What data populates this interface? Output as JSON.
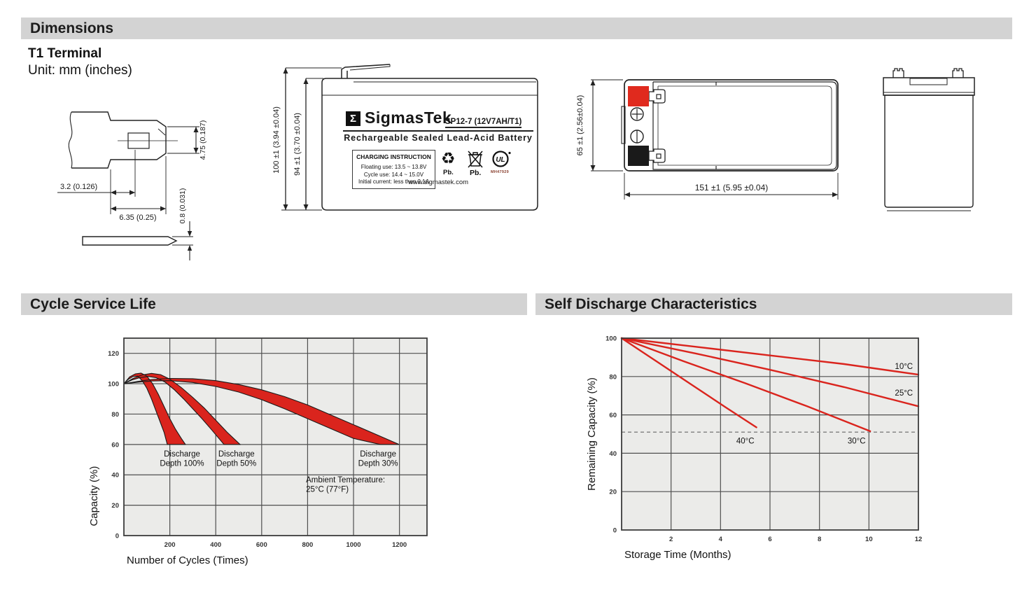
{
  "sections": {
    "dimensions": {
      "title": "Dimensions"
    }
  },
  "terminal": {
    "heading": "T1 Terminal",
    "unit": "Unit: mm (inches)",
    "dims": {
      "offset_3_2": "3.2 (0.126)",
      "width_6_35": "6.35 (0.25)",
      "height_4_75": "4.75 (0.187)",
      "thickness_0_8": "0.8 (0.031)"
    }
  },
  "front_view": {
    "dim_total_height": "100 ±1 (3.94 ±0.04)",
    "dim_case_height": "94 ±1 (3.70 ±0.04)",
    "label": {
      "logo_glyph": "Σ",
      "brand": "SigmasTek",
      "model": "SP12-7 (12V7AH/T1)",
      "subtitle": "Rechargeable Sealed Lead-Acid Battery",
      "charging_box": {
        "title": "CHARGING INSTRUCTION",
        "lines": [
          "Floating use: 13.5 ~ 13.8V",
          "Cycle use: 14.4 ~ 15.0V",
          "Initial current: less than 2.1A"
        ]
      },
      "pb_recycle_label": "Pb.",
      "pb_trash_label": "Pb.",
      "recycle_glyph": "♻",
      "ul_letters": "UL",
      "ul_number": "MH47929",
      "website": "www.sigmastek.com"
    }
  },
  "top_view": {
    "dim_width": "65 ±1 (2.56±0.04)",
    "dim_length": "151 ±1 (5.95 ±0.04)",
    "positive_color": "#e02a1e",
    "negative_color": "#1a1a1a"
  },
  "chart_data": [
    {
      "type": "area",
      "title": "Cycle Service Life",
      "xlabel": "Number of Cycles (Times)",
      "ylabel": "Capacity (%)",
      "xlim": [
        0,
        1320
      ],
      "ylim": [
        0,
        130
      ],
      "xticks": [
        200,
        400,
        600,
        800,
        1000,
        1200
      ],
      "yticks": [
        0,
        20,
        40,
        60,
        80,
        100,
        120
      ],
      "xgrid": [
        200,
        400,
        600,
        800,
        1000,
        1200
      ],
      "ygrid": [
        20,
        40,
        60,
        80,
        100,
        120
      ],
      "grid": true,
      "colors": {
        "bg": "#ebebe9",
        "grid": "#4f4f4f",
        "border": "#3c3c3c",
        "fill": "#da241d"
      },
      "bands": [
        {
          "name": "Discharge Depth 100%",
          "upper": [
            [
              0,
              100
            ],
            [
              25,
              104.5
            ],
            [
              50,
              106.5
            ],
            [
              75,
              107
            ],
            [
              100,
              105
            ],
            [
              125,
              100
            ],
            [
              150,
              93
            ],
            [
              175,
              85
            ],
            [
              200,
              77
            ],
            [
              225,
              70
            ],
            [
              250,
              64
            ],
            [
              268,
              60
            ]
          ],
          "lower": [
            [
              0,
              100
            ],
            [
              20,
              103
            ],
            [
              40,
              104.8
            ],
            [
              60,
              105
            ],
            [
              80,
              102
            ],
            [
              100,
              97
            ],
            [
              120,
              90
            ],
            [
              140,
              82
            ],
            [
              160,
              74
            ],
            [
              175,
              68
            ],
            [
              189,
              60
            ]
          ]
        },
        {
          "name": "Discharge Depth 50%",
          "upper": [
            [
              0,
              100
            ],
            [
              40,
              103.5
            ],
            [
              80,
              105.8
            ],
            [
              120,
              106.8
            ],
            [
              160,
              106
            ],
            [
              200,
              103
            ],
            [
              250,
              97.5
            ],
            [
              300,
              91
            ],
            [
              350,
              84
            ],
            [
              400,
              76
            ],
            [
              450,
              68
            ],
            [
              506,
              60
            ]
          ],
          "lower": [
            [
              0,
              100
            ],
            [
              35,
              102.5
            ],
            [
              70,
              104
            ],
            [
              105,
              104.8
            ],
            [
              140,
              104
            ],
            [
              180,
              101
            ],
            [
              220,
              96
            ],
            [
              260,
              90
            ],
            [
              300,
              83.5
            ],
            [
              340,
              77
            ],
            [
              380,
              70
            ],
            [
              436,
              60
            ]
          ]
        },
        {
          "name": "Discharge Depth 30%",
          "upper": [
            [
              0,
              100
            ],
            [
              60,
              101.5
            ],
            [
              120,
              102.8
            ],
            [
              200,
              103.5
            ],
            [
              300,
              103.3
            ],
            [
              400,
              102
            ],
            [
              500,
              99.5
            ],
            [
              600,
              96
            ],
            [
              700,
              91.5
            ],
            [
              800,
              86
            ],
            [
              900,
              79.5
            ],
            [
              1000,
              73
            ],
            [
              1100,
              66.5
            ],
            [
              1198,
              60
            ]
          ],
          "lower": [
            [
              0,
              100
            ],
            [
              60,
              101
            ],
            [
              120,
              101.8
            ],
            [
              200,
              102
            ],
            [
              300,
              100.8
            ],
            [
              400,
              98.2
            ],
            [
              500,
              94.5
            ],
            [
              600,
              89.5
            ],
            [
              700,
              83.5
            ],
            [
              800,
              77
            ],
            [
              900,
              70.5
            ],
            [
              1000,
              64
            ],
            [
              1116,
              60
            ]
          ]
        }
      ],
      "annotations": [
        {
          "lines": [
            "Discharge",
            "Depth 100%"
          ],
          "x": 253,
          "y": 52,
          "anchor": "middle"
        },
        {
          "lines": [
            "Discharge",
            "Depth 50%"
          ],
          "x": 490,
          "y": 52,
          "anchor": "middle"
        },
        {
          "lines": [
            "Discharge",
            "Depth 30%"
          ],
          "x": 1107,
          "y": 52,
          "anchor": "middle"
        },
        {
          "lines": [
            "Ambient Temperature:",
            "25°C (77°F)"
          ],
          "x": 793,
          "y": 35,
          "anchor": "start"
        }
      ]
    },
    {
      "type": "line",
      "title": "Self Discharge Characteristics",
      "xlabel": "Storage Time (Months)",
      "ylabel": "Remaining Capacity (%)",
      "xlim": [
        0,
        12
      ],
      "ylim": [
        0,
        100
      ],
      "xticks": [
        2,
        4,
        6,
        8,
        10,
        12
      ],
      "yticks": [
        0,
        20,
        40,
        60,
        80,
        100
      ],
      "xgrid": [
        2,
        4,
        6,
        8,
        10
      ],
      "ygrid": [
        20,
        40,
        60,
        80
      ],
      "grid": true,
      "dashed_y": 51,
      "colors": {
        "bg": "#ebebe9",
        "grid": "#4f4f4f",
        "border": "#3c3c3c",
        "line": "#da241d"
      },
      "series": [
        {
          "name": "10°C",
          "points": [
            [
              0,
              100
            ],
            [
              3,
              95.5
            ],
            [
              6,
              91
            ],
            [
              9,
              86.5
            ],
            [
              12,
              81
            ]
          ]
        },
        {
          "name": "25°C",
          "points": [
            [
              0,
              100
            ],
            [
              3,
              92
            ],
            [
              6,
              83.5
            ],
            [
              9,
              74.5
            ],
            [
              12,
              64.5
            ]
          ]
        },
        {
          "name": "30°C",
          "points": [
            [
              0,
              100
            ],
            [
              2.5,
              88
            ],
            [
              5,
              76.5
            ],
            [
              7.5,
              64.5
            ],
            [
              10.05,
              51.5
            ]
          ]
        },
        {
          "name": "40°C",
          "points": [
            [
              0,
              100
            ],
            [
              1.4,
              88
            ],
            [
              2.8,
              76
            ],
            [
              4.2,
              64
            ],
            [
              5.45,
              53.5
            ]
          ]
        }
      ],
      "annotations": [
        {
          "lines": [
            "10°C"
          ],
          "x": 11.05,
          "y": 84,
          "anchor": "start"
        },
        {
          "lines": [
            "25°C"
          ],
          "x": 11.05,
          "y": 70,
          "anchor": "start"
        },
        {
          "lines": [
            "40°C"
          ],
          "x": 5.0,
          "y": 45,
          "anchor": "middle"
        },
        {
          "lines": [
            "30°C"
          ],
          "x": 9.5,
          "y": 45,
          "anchor": "middle"
        }
      ]
    }
  ]
}
